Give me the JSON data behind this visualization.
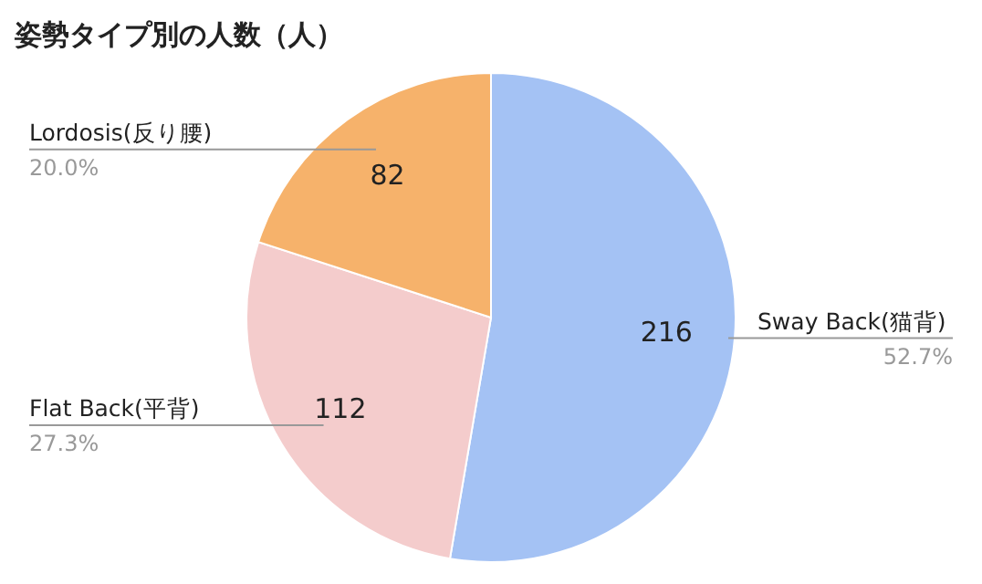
{
  "chart_data": {
    "type": "pie",
    "title": "姿勢タイプ別の人数（人）",
    "categories": [
      "Sway Back(猫背)",
      "Flat Back(平背)",
      "Lordosis(反り腰)"
    ],
    "values": [
      216,
      112,
      82
    ],
    "colors": [
      "#a4c2f4",
      "#f4cccc",
      "#f6b26b"
    ],
    "data_labels": true,
    "annotations": [
      "52.7%",
      "27.3%",
      "20.0%"
    ],
    "legend": false
  }
}
